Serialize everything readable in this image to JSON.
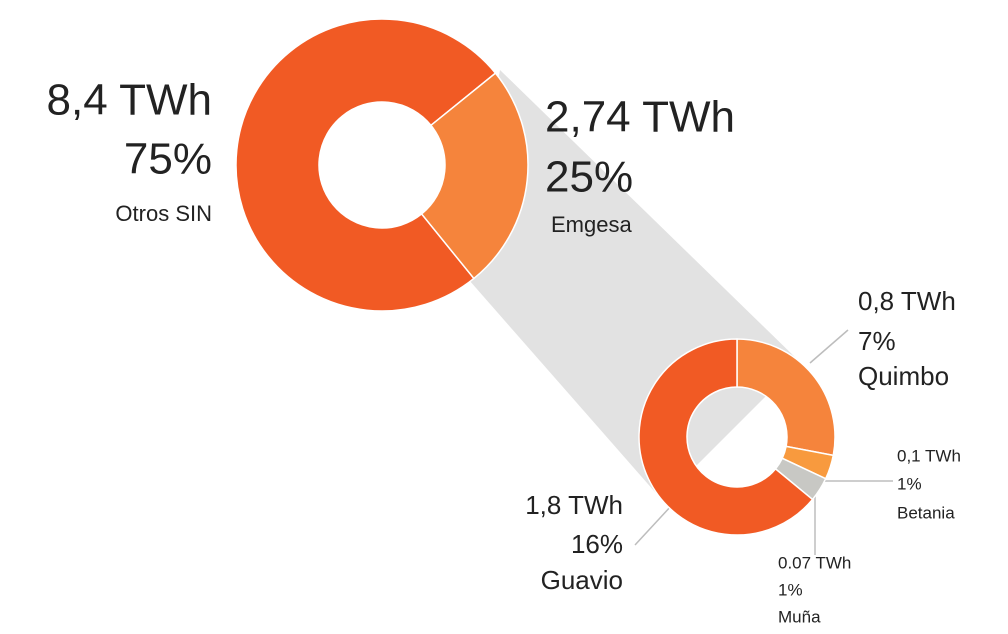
{
  "chart_data": [
    {
      "type": "donut",
      "categories": [
        "Otros SIN",
        "Emgesa"
      ],
      "values": [
        75,
        25
      ],
      "value_labels": [
        "75%",
        "25%"
      ],
      "amounts": [
        8.4,
        2.74
      ],
      "amount_labels": [
        "8,4 TWh",
        "2,74 TWh"
      ],
      "colors": [
        "#f15a24",
        "#f5843c"
      ]
    },
    {
      "type": "donut",
      "categories": [
        "Quimbo",
        "Betania",
        "Muña",
        "Guavio"
      ],
      "values": [
        7,
        1,
        1,
        16
      ],
      "value_labels": [
        "7%",
        "1%",
        "1%",
        "16%"
      ],
      "amounts": [
        0.8,
        0.1,
        0.07,
        1.8
      ],
      "amount_labels": [
        "0,8 TWh",
        "0,1 TWh",
        "0.07 TWh",
        "1,8 TWh"
      ],
      "colors": [
        "#f5843c",
        "#f89a3e",
        "#c8c8c4",
        "#f15a24"
      ]
    }
  ]
}
